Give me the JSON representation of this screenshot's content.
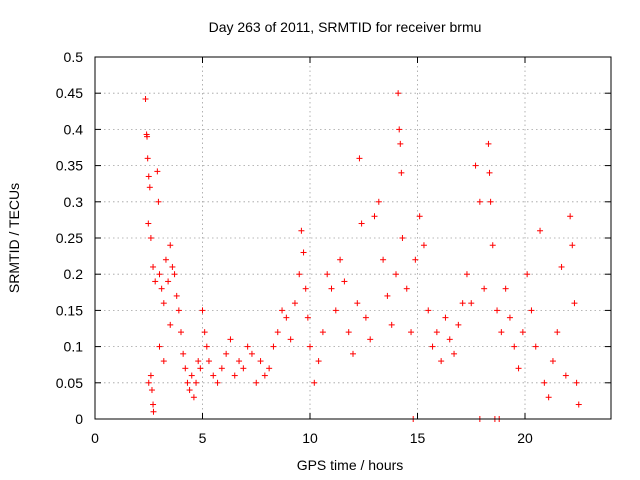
{
  "chart_data": {
    "type": "scatter",
    "title": "Day 263 of 2011, SRMTID for receiver brmu",
    "xlabel": "GPS time / hours",
    "ylabel": "SRMTID / TECUs",
    "xlim": [
      0,
      24
    ],
    "ylim": [
      0,
      0.5
    ],
    "xticks": [
      "0",
      "5",
      "10",
      "15",
      "20"
    ],
    "yticks": [
      "0",
      "0.05",
      "0.1",
      "0.15",
      "0.2",
      "0.25",
      "0.3",
      "0.35",
      "0.4",
      "0.45",
      "0.5"
    ],
    "grid": true,
    "marker": "plus",
    "color": "#ff0000",
    "series": [
      {
        "name": "SRMTID",
        "points": [
          [
            2.35,
            0.442
          ],
          [
            2.4,
            0.393
          ],
          [
            2.42,
            0.39
          ],
          [
            2.45,
            0.36
          ],
          [
            2.5,
            0.335
          ],
          [
            2.55,
            0.32
          ],
          [
            2.48,
            0.27
          ],
          [
            2.6,
            0.25
          ],
          [
            2.7,
            0.21
          ],
          [
            2.8,
            0.19
          ],
          [
            2.9,
            0.342
          ],
          [
            2.95,
            0.3
          ],
          [
            3.0,
            0.2
          ],
          [
            3.1,
            0.18
          ],
          [
            3.2,
            0.16
          ],
          [
            3.3,
            0.22
          ],
          [
            3.4,
            0.19
          ],
          [
            3.5,
            0.24
          ],
          [
            3.6,
            0.21
          ],
          [
            3.7,
            0.2
          ],
          [
            3.8,
            0.17
          ],
          [
            3.9,
            0.15
          ],
          [
            4.0,
            0.12
          ],
          [
            2.6,
            0.06
          ],
          [
            2.65,
            0.04
          ],
          [
            2.7,
            0.02
          ],
          [
            2.72,
            0.01
          ],
          [
            2.5,
            0.05
          ],
          [
            3.0,
            0.1
          ],
          [
            3.2,
            0.08
          ],
          [
            3.5,
            0.13
          ],
          [
            4.1,
            0.09
          ],
          [
            4.2,
            0.07
          ],
          [
            4.3,
            0.05
          ],
          [
            4.4,
            0.04
          ],
          [
            4.5,
            0.06
          ],
          [
            4.6,
            0.03
          ],
          [
            4.7,
            0.05
          ],
          [
            4.8,
            0.08
          ],
          [
            4.9,
            0.07
          ],
          [
            5.0,
            0.15
          ],
          [
            5.1,
            0.12
          ],
          [
            5.2,
            0.1
          ],
          [
            5.3,
            0.08
          ],
          [
            5.5,
            0.06
          ],
          [
            5.7,
            0.05
          ],
          [
            5.9,
            0.07
          ],
          [
            6.1,
            0.09
          ],
          [
            6.3,
            0.11
          ],
          [
            6.5,
            0.06
          ],
          [
            6.7,
            0.08
          ],
          [
            6.9,
            0.07
          ],
          [
            7.1,
            0.1
          ],
          [
            7.3,
            0.09
          ],
          [
            7.5,
            0.05
          ],
          [
            7.7,
            0.08
          ],
          [
            7.9,
            0.06
          ],
          [
            8.1,
            0.07
          ],
          [
            8.3,
            0.1
          ],
          [
            8.5,
            0.12
          ],
          [
            8.7,
            0.15
          ],
          [
            8.9,
            0.14
          ],
          [
            9.1,
            0.11
          ],
          [
            9.3,
            0.16
          ],
          [
            9.5,
            0.2
          ],
          [
            9.6,
            0.26
          ],
          [
            9.7,
            0.23
          ],
          [
            9.8,
            0.18
          ],
          [
            9.9,
            0.14
          ],
          [
            10.0,
            0.1
          ],
          [
            10.2,
            0.05
          ],
          [
            10.4,
            0.08
          ],
          [
            10.6,
            0.12
          ],
          [
            10.8,
            0.2
          ],
          [
            11.0,
            0.18
          ],
          [
            11.2,
            0.15
          ],
          [
            11.4,
            0.22
          ],
          [
            11.6,
            0.19
          ],
          [
            11.8,
            0.12
          ],
          [
            12.0,
            0.09
          ],
          [
            12.2,
            0.16
          ],
          [
            12.3,
            0.36
          ],
          [
            12.4,
            0.27
          ],
          [
            12.6,
            0.14
          ],
          [
            12.8,
            0.11
          ],
          [
            13.0,
            0.28
          ],
          [
            13.2,
            0.3
          ],
          [
            13.4,
            0.22
          ],
          [
            13.6,
            0.17
          ],
          [
            13.8,
            0.13
          ],
          [
            14.0,
            0.2
          ],
          [
            14.1,
            0.45
          ],
          [
            14.15,
            0.4
          ],
          [
            14.2,
            0.38
          ],
          [
            14.25,
            0.34
          ],
          [
            14.3,
            0.25
          ],
          [
            14.5,
            0.18
          ],
          [
            14.7,
            0.12
          ],
          [
            14.9,
            0.22
          ],
          [
            15.1,
            0.28
          ],
          [
            15.3,
            0.24
          ],
          [
            15.5,
            0.15
          ],
          [
            15.7,
            0.1
          ],
          [
            15.9,
            0.12
          ],
          [
            16.1,
            0.08
          ],
          [
            16.3,
            0.14
          ],
          [
            16.5,
            0.11
          ],
          [
            16.7,
            0.09
          ],
          [
            16.9,
            0.13
          ],
          [
            17.1,
            0.16
          ],
          [
            17.3,
            0.2
          ],
          [
            17.5,
            0.16
          ],
          [
            17.7,
            0.35
          ],
          [
            17.9,
            0.3
          ],
          [
            18.1,
            0.18
          ],
          [
            18.3,
            0.38
          ],
          [
            18.35,
            0.34
          ],
          [
            18.4,
            0.3
          ],
          [
            18.5,
            0.24
          ],
          [
            18.7,
            0.15
          ],
          [
            18.9,
            0.12
          ],
          [
            19.1,
            0.18
          ],
          [
            19.3,
            0.14
          ],
          [
            19.5,
            0.1
          ],
          [
            19.7,
            0.07
          ],
          [
            19.9,
            0.12
          ],
          [
            20.1,
            0.2
          ],
          [
            20.3,
            0.15
          ],
          [
            20.5,
            0.1
          ],
          [
            20.7,
            0.26
          ],
          [
            20.9,
            0.05
          ],
          [
            21.1,
            0.03
          ],
          [
            21.3,
            0.08
          ],
          [
            21.5,
            0.12
          ],
          [
            21.7,
            0.21
          ],
          [
            21.9,
            0.06
          ],
          [
            22.1,
            0.28
          ],
          [
            22.2,
            0.24
          ],
          [
            22.3,
            0.16
          ],
          [
            22.4,
            0.05
          ],
          [
            22.5,
            0.02
          ],
          [
            14.8,
            0.0
          ],
          [
            17.9,
            0.0
          ],
          [
            18.6,
            0.0
          ],
          [
            18.8,
            0.0
          ]
        ]
      }
    ]
  }
}
